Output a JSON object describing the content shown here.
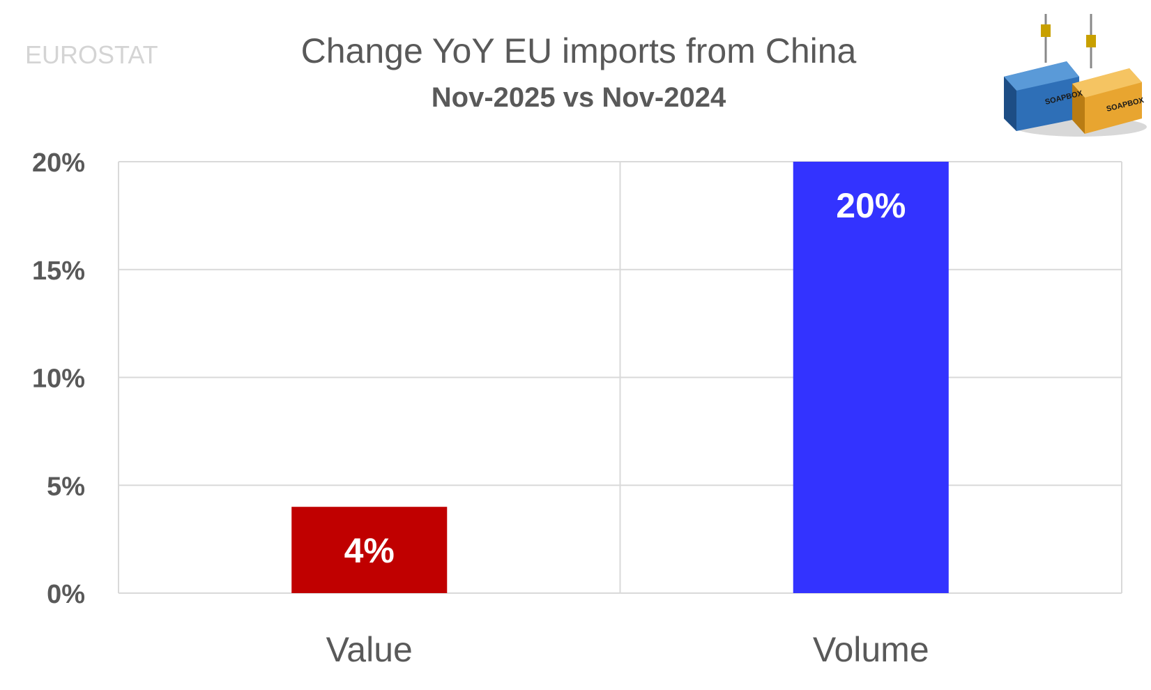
{
  "header": {
    "source": "EUROSTAT",
    "title": "Change YoY EU imports from China",
    "subtitle": "Nov-2025 vs Nov-2024"
  },
  "logo": {
    "icon": "shipping-containers-logo",
    "text": "SOAPBOX",
    "colors": {
      "left": "#2e6fb7",
      "right": "#e8a530"
    }
  },
  "chart_data": {
    "type": "bar",
    "categories": [
      "Value",
      "Volume"
    ],
    "values": [
      4,
      20
    ],
    "data_labels": [
      "4%",
      "20%"
    ],
    "colors": [
      "#c00000",
      "#3333ff"
    ],
    "ylim": [
      0,
      20
    ],
    "yticks": [
      0,
      5,
      10,
      15,
      20
    ],
    "ytick_labels": [
      "0%",
      "5%",
      "10%",
      "15%",
      "20%"
    ],
    "grid": true,
    "legend": "none"
  }
}
